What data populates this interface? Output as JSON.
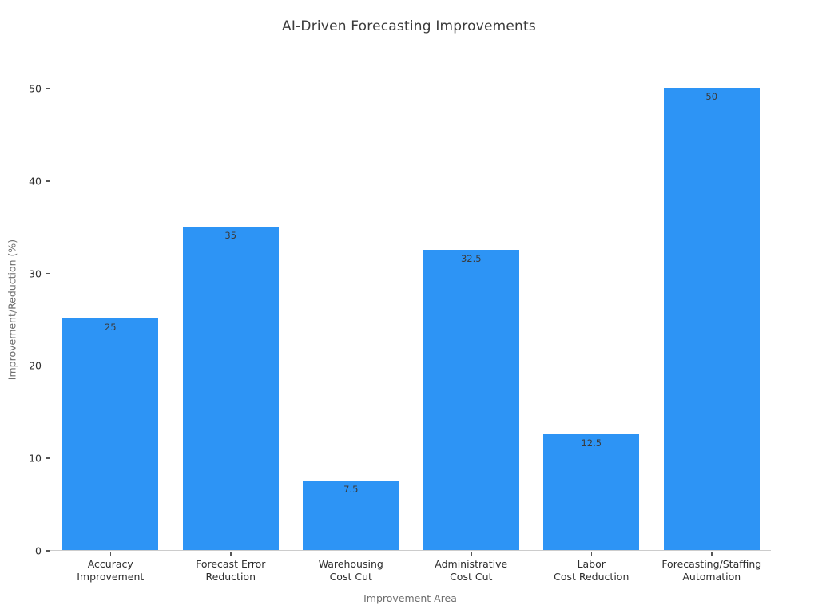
{
  "chart_data": {
    "type": "bar",
    "title": "AI-Driven Forecasting Improvements",
    "xlabel": "Improvement Area",
    "ylabel": "Improvement/Reduction (%)",
    "categories": [
      [
        "Accuracy",
        "Improvement"
      ],
      [
        "Forecast Error",
        "Reduction"
      ],
      [
        "Warehousing",
        "Cost Cut"
      ],
      [
        "Administrative",
        "Cost Cut"
      ],
      [
        "Labor",
        "Cost Reduction"
      ],
      [
        "Forecasting/Staffing",
        "Automation"
      ]
    ],
    "values": [
      25,
      35,
      7.5,
      32.5,
      12.5,
      50
    ],
    "bar_labels": [
      "25",
      "35",
      "7.5",
      "32.5",
      "12.5",
      "50"
    ],
    "yticks": [
      0,
      10,
      20,
      30,
      40,
      50
    ],
    "ylim": [
      0,
      52.5
    ],
    "grid": false,
    "legend": "none",
    "bar_color": "#2D94F5",
    "spine_color": "#cccccc",
    "tick_color": "#555555",
    "text_color": "#2e2e2e",
    "muted_text_color": "#6e6e6e"
  }
}
